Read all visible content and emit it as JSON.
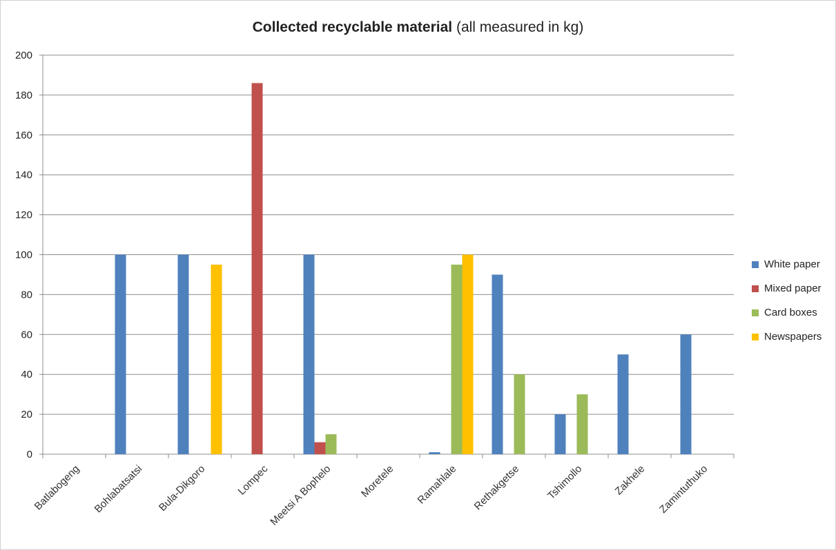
{
  "chart_data": {
    "type": "bar",
    "title": "Collected recyclable material",
    "subtitle": "(all measured in kg)",
    "categories": [
      "Batlabogeng",
      "Bohlabatsatsi",
      "Bula-Dikgoro",
      "Lompec",
      "Meetsi A Bophelo",
      "Moretele",
      "Ramahlale",
      "Rethakgetse",
      "Tshimollo",
      "Zakhele",
      "Zamintuthuko"
    ],
    "series": [
      {
        "name": "White paper",
        "color": "#4F81BD",
        "values": [
          0,
          100,
          100,
          0,
          100,
          0,
          1,
          90,
          20,
          50,
          60
        ]
      },
      {
        "name": "Mixed paper",
        "color": "#C0504D",
        "values": [
          0,
          0,
          0,
          186,
          6,
          0,
          0,
          0,
          0,
          0,
          0
        ]
      },
      {
        "name": "Card boxes",
        "color": "#9BBB59",
        "values": [
          0,
          0,
          0,
          0,
          10,
          0,
          95,
          40,
          30,
          0,
          0
        ]
      },
      {
        "name": "Newspapers",
        "color": "#FFC000",
        "values": [
          0,
          0,
          95,
          0,
          0,
          0,
          100,
          0,
          0,
          0,
          0
        ]
      }
    ],
    "ylim": [
      0,
      200
    ],
    "yticks": [
      0,
      20,
      40,
      60,
      80,
      100,
      120,
      140,
      160,
      180,
      200
    ],
    "grid": true,
    "legend": "right"
  }
}
